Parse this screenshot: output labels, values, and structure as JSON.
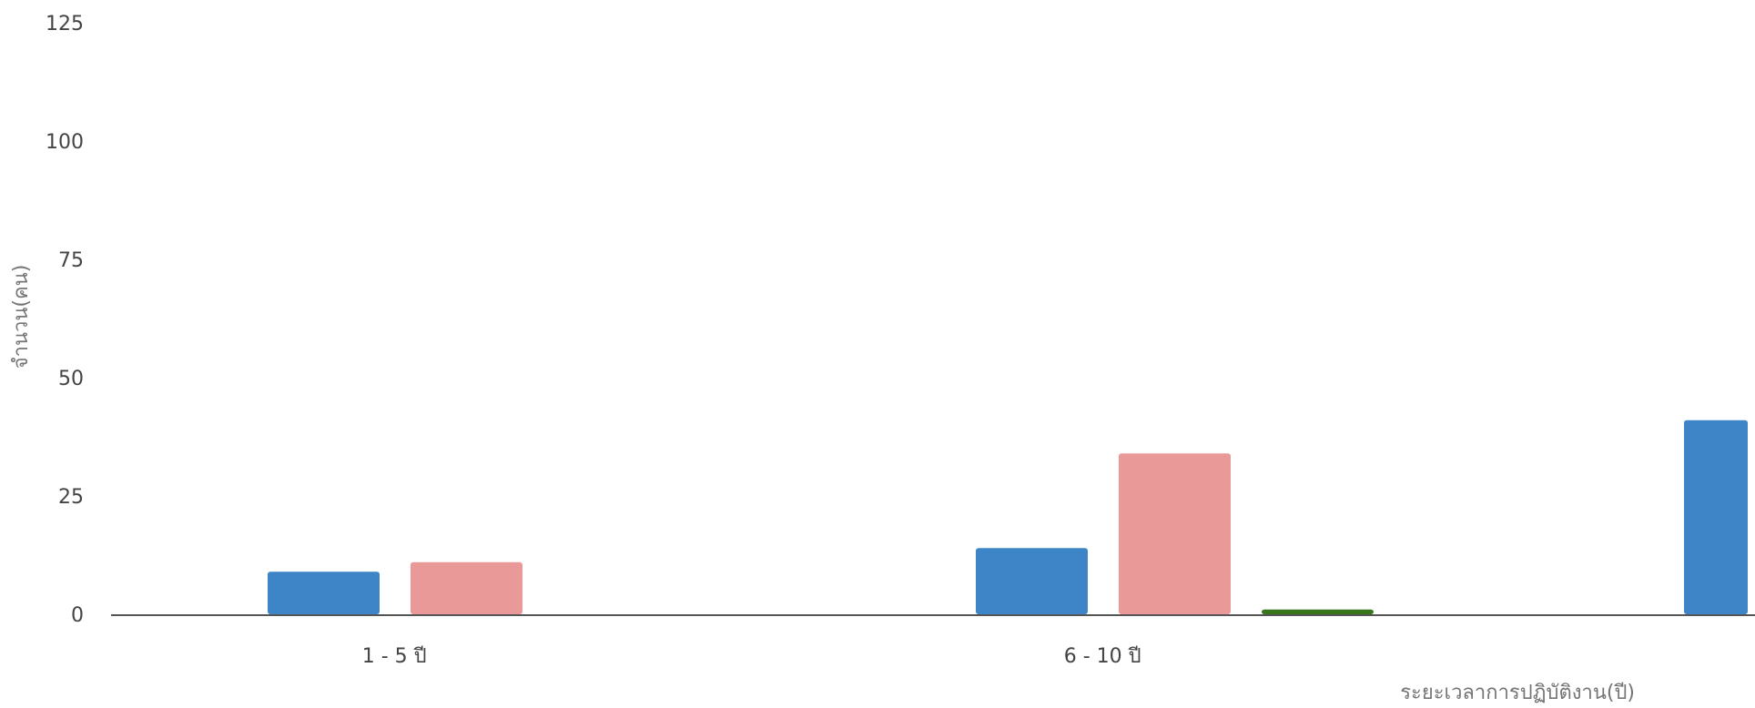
{
  "chart_data": {
    "type": "bar",
    "title": "",
    "xlabel": "ระยะเวลาการปฏิบัติงาน(ปี)",
    "ylabel": "จำนวน(คน)",
    "ylim": [
      0,
      125
    ],
    "yticks": [
      "0",
      "25",
      "50",
      "75",
      "100",
      "125"
    ],
    "grid": false,
    "legend": "none",
    "categories": [
      "1 - 5 ปี",
      "6 - 10 ปี",
      ""
    ],
    "series": [
      {
        "color": "#3d85c6",
        "values": [
          9,
          14,
          41
        ]
      },
      {
        "color": "#ea9999",
        "values": [
          11,
          34,
          null
        ]
      },
      {
        "color": "#38761d",
        "values": [
          0,
          1,
          null
        ]
      }
    ]
  }
}
